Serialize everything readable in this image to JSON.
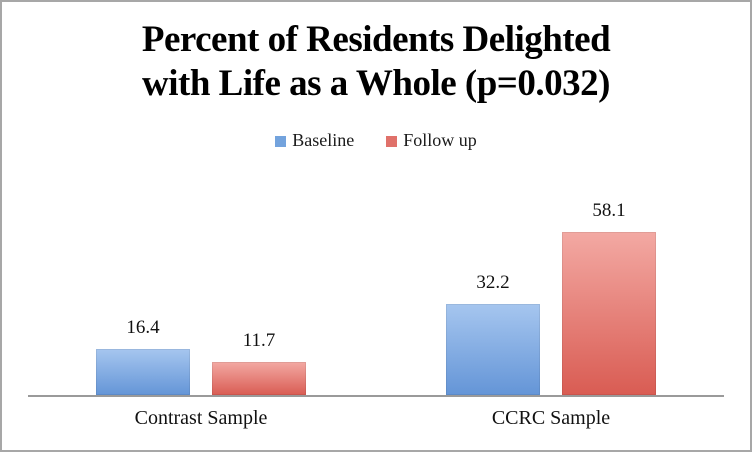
{
  "chart": {
    "frame_border_color": "#a7a7a7",
    "background_color": "#ffffff"
  },
  "chart_data": {
    "type": "bar",
    "title": "Percent of Residents Delighted with Life as a Whole (p=0.032)",
    "title_lines": [
      "Percent of Residents Delighted",
      "with Life as a Whole (p=0.032)"
    ],
    "categories": [
      "Contrast Sample",
      "CCRC Sample"
    ],
    "series": [
      {
        "name": "Baseline",
        "values": [
          16.4,
          32.2
        ],
        "color_top": "#a6c6ef",
        "color_bottom": "#6495d7",
        "legend_color": "#73a3dd"
      },
      {
        "name": "Follow up",
        "values": [
          11.7,
          58.1
        ],
        "color_top": "#f3a9a3",
        "color_bottom": "#d95c53",
        "legend_color": "#e0716a"
      }
    ],
    "xlabel": "",
    "ylabel": "",
    "ylim": [
      0,
      80
    ],
    "grid": false,
    "data_labels": true,
    "legend_position": "top",
    "axis_line_color": "#9a9a9a"
  }
}
